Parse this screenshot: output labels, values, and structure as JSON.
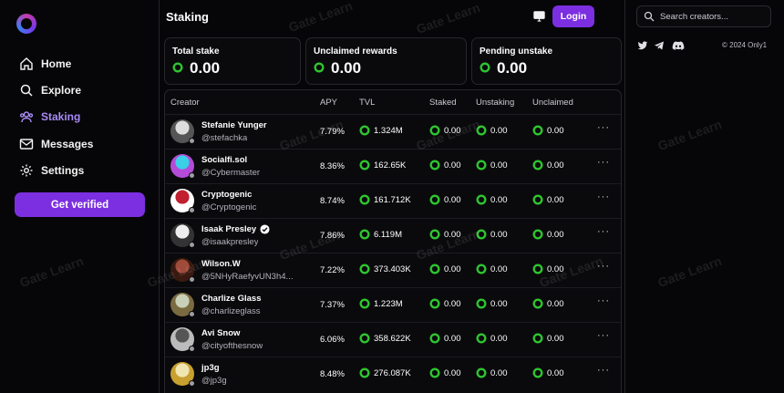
{
  "nav": {
    "items": [
      {
        "label": "Home",
        "icon": "home-icon"
      },
      {
        "label": "Explore",
        "icon": "search-icon"
      },
      {
        "label": "Staking",
        "icon": "users-icon"
      },
      {
        "label": "Messages",
        "icon": "mail-icon"
      },
      {
        "label": "Settings",
        "icon": "gear-icon"
      }
    ],
    "active": "Staking",
    "verify_label": "Get verified"
  },
  "header": {
    "title": "Staking",
    "login_label": "Login"
  },
  "stats": [
    {
      "label": "Total stake",
      "value": "0.00"
    },
    {
      "label": "Unclaimed rewards",
      "value": "0.00"
    },
    {
      "label": "Pending unstake",
      "value": "0.00"
    }
  ],
  "table": {
    "columns": [
      "Creator",
      "APY",
      "TVL",
      "Staked",
      "Unstaking",
      "Unclaimed"
    ],
    "rows": [
      {
        "name": "Stefanie Yunger",
        "handle": "@stefachka",
        "apy": "7.79%",
        "tvl": "1.324M",
        "staked": "0.00",
        "unstaking": "0.00",
        "unclaimed": "0.00",
        "verified": false
      },
      {
        "name": "Socialfi.sol",
        "handle": "@Cybermaster",
        "apy": "8.36%",
        "tvl": "162.65K",
        "staked": "0.00",
        "unstaking": "0.00",
        "unclaimed": "0.00",
        "verified": false
      },
      {
        "name": "Cryptogenic",
        "handle": "@Cryptogenic",
        "apy": "8.74%",
        "tvl": "161.712K",
        "staked": "0.00",
        "unstaking": "0.00",
        "unclaimed": "0.00",
        "verified": false
      },
      {
        "name": "Isaak Presley",
        "handle": "@isaakpresley",
        "apy": "7.86%",
        "tvl": "6.119M",
        "staked": "0.00",
        "unstaking": "0.00",
        "unclaimed": "0.00",
        "verified": true
      },
      {
        "name": "Wilson.W",
        "handle": "@5NHyRaefyvUN3h4...",
        "apy": "7.22%",
        "tvl": "373.403K",
        "staked": "0.00",
        "unstaking": "0.00",
        "unclaimed": "0.00",
        "verified": false
      },
      {
        "name": "Charlize Glass",
        "handle": "@charlizeglass",
        "apy": "7.37%",
        "tvl": "1.223M",
        "staked": "0.00",
        "unstaking": "0.00",
        "unclaimed": "0.00",
        "verified": false
      },
      {
        "name": "Avi Snow",
        "handle": "@cityofthesnow",
        "apy": "6.06%",
        "tvl": "358.622K",
        "staked": "0.00",
        "unstaking": "0.00",
        "unclaimed": "0.00",
        "verified": false
      },
      {
        "name": "jp3g",
        "handle": "@jp3g",
        "apy": "8.48%",
        "tvl": "276.087K",
        "staked": "0.00",
        "unstaking": "0.00",
        "unclaimed": "0.00",
        "verified": false
      }
    ],
    "more_label": "···"
  },
  "search": {
    "placeholder": "Search creators..."
  },
  "social": [
    "twitter-icon",
    "telegram-icon",
    "discord-icon"
  ],
  "footer": {
    "copyright": "© 2024 Only1"
  },
  "watermark": "Gate Learn",
  "colors": {
    "accent": "#7b2fe0",
    "active_nav": "#a98af5",
    "token_ring": "#2ec52e",
    "background": "#060608"
  }
}
